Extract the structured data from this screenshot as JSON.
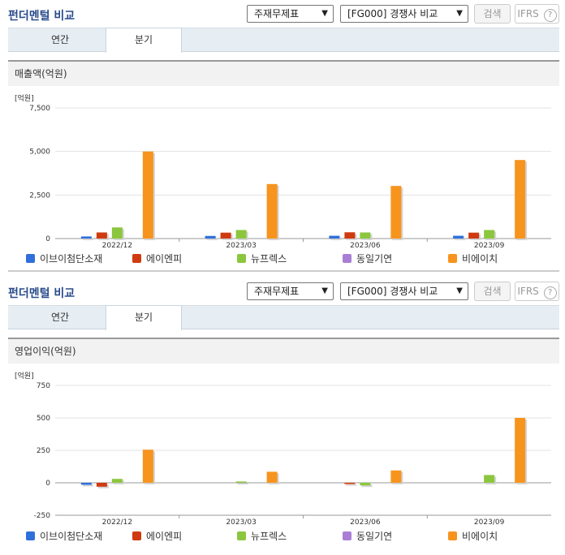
{
  "colors": {
    "s1": "#2f6fdb",
    "s2": "#d03a10",
    "s3": "#8cc63f",
    "s4": "#a97fd6",
    "s5": "#f7941d"
  },
  "panels": [
    {
      "title": "펀더멘털 비교",
      "select1": "주재무제표",
      "select2": "[FG000] 경쟁사 비교",
      "search_label": "검색",
      "ifrs_label": "IFRS",
      "help_icon": "?",
      "tabs": [
        "연간",
        "분기"
      ],
      "subheading": "매출액(억원)",
      "unit": "[억원]",
      "legend": [
        "이브이첨단소재",
        "에이엔피",
        "뉴프렉스",
        "동일기연",
        "비에이치"
      ]
    },
    {
      "title": "펀더멘털 비교",
      "select1": "주재무제표",
      "select2": "[FG000] 경쟁사 비교",
      "search_label": "검색",
      "ifrs_label": "IFRS",
      "help_icon": "?",
      "tabs": [
        "연간",
        "분기"
      ],
      "subheading": "영업이익(억원)",
      "unit": "[억원]",
      "legend": [
        "이브이첨단소재",
        "에이엔피",
        "뉴프렉스",
        "동일기연",
        "비에이치"
      ]
    }
  ],
  "chart_data": [
    {
      "type": "bar",
      "title": "매출액(억원)",
      "categories": [
        "2022/12",
        "2023/03",
        "2023/06",
        "2023/09"
      ],
      "ylim": [
        0,
        7500
      ],
      "yticks": [
        0,
        2500,
        5000,
        7500
      ],
      "ytick_labels": [
        "0",
        "2,500",
        "5,000",
        "7,500"
      ],
      "series": [
        {
          "name": "이브이첨단소재",
          "values": [
            120,
            150,
            160,
            160
          ]
        },
        {
          "name": "에이엔피",
          "values": [
            350,
            340,
            360,
            340
          ]
        },
        {
          "name": "뉴프렉스",
          "values": [
            640,
            490,
            350,
            490
          ]
        },
        {
          "name": "동일기연",
          "values": [
            0,
            0,
            0,
            0
          ]
        },
        {
          "name": "비에이치",
          "values": [
            5000,
            3130,
            3020,
            4510
          ]
        }
      ]
    },
    {
      "type": "bar",
      "title": "영업이익(억원)",
      "categories": [
        "2022/12",
        "2023/03",
        "2023/06",
        "2023/09"
      ],
      "ylim": [
        -250,
        750
      ],
      "yticks": [
        -250,
        0,
        250,
        500,
        750
      ],
      "ytick_labels": [
        "-250",
        "0",
        "250",
        "500",
        "750"
      ],
      "series": [
        {
          "name": "이브이첨단소재",
          "values": [
            -15,
            0,
            0,
            0
          ]
        },
        {
          "name": "에이엔피",
          "values": [
            -30,
            0,
            -10,
            0
          ]
        },
        {
          "name": "뉴프렉스",
          "values": [
            30,
            10,
            -20,
            60
          ]
        },
        {
          "name": "동일기연",
          "values": [
            0,
            0,
            0,
            0
          ]
        },
        {
          "name": "비에이치",
          "values": [
            255,
            85,
            95,
            500
          ]
        }
      ]
    }
  ]
}
